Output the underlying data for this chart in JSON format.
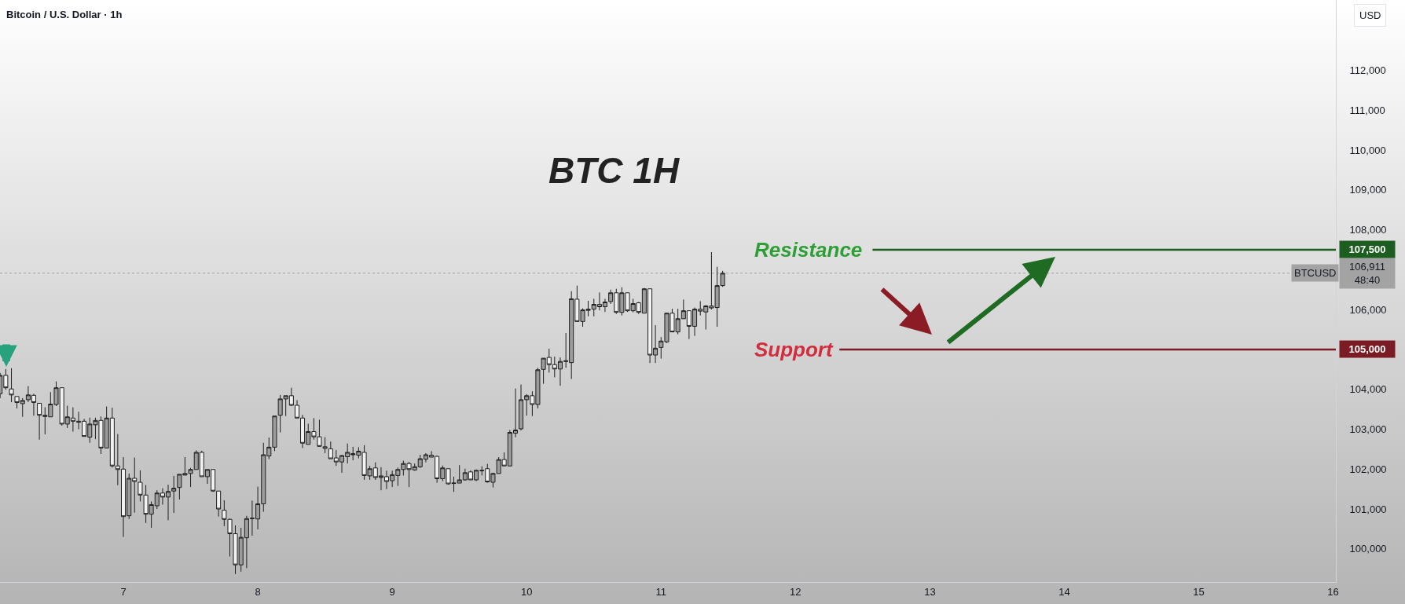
{
  "chart_data": {
    "type": "candlestick",
    "title": "Bitcoin / U.S. Dollar · 1h",
    "ylabel": "USD",
    "annotations": [
      "BTC 1H"
    ],
    "x": [
      6.083,
      6.125,
      6.167,
      6.208,
      6.25,
      6.292,
      6.333,
      6.375,
      6.417,
      6.458,
      6.5,
      6.542,
      6.583,
      6.625,
      6.667,
      6.708,
      6.75,
      6.792,
      6.833,
      6.875,
      6.917,
      6.958,
      7,
      7.042,
      7.083,
      7.125,
      7.167,
      7.208,
      7.25,
      7.292,
      7.333,
      7.375,
      7.417,
      7.458,
      7.5,
      7.542,
      7.583,
      7.625,
      7.667,
      7.708,
      7.75,
      7.792,
      7.833,
      7.875,
      7.917,
      7.958,
      8,
      8.042,
      8.083,
      8.125,
      8.167,
      8.208,
      8.25,
      8.292,
      8.333,
      8.375,
      8.417,
      8.458,
      8.5,
      8.542,
      8.583,
      8.625,
      8.667,
      8.708,
      8.75,
      8.792,
      8.833,
      8.875,
      8.917,
      8.958,
      9,
      9.042,
      9.083,
      9.125,
      9.167,
      9.208,
      9.25,
      9.292,
      9.333,
      9.375,
      9.417,
      9.458,
      9.5,
      9.542,
      9.583,
      9.625,
      9.667,
      9.708,
      9.75,
      9.792,
      9.833,
      9.875,
      9.917,
      9.958,
      10,
      10.042,
      10.083,
      10.125,
      10.167,
      10.208,
      10.25,
      10.292,
      10.333,
      10.375,
      10.417,
      10.458,
      10.5,
      10.542,
      10.583,
      10.625,
      10.667,
      10.708,
      10.75,
      10.792,
      10.833,
      10.875,
      10.917,
      10.958,
      11,
      11.042,
      11.083,
      11.125,
      11.167,
      11.208,
      11.25,
      11.292,
      11.333,
      11.375,
      11.417,
      11.458
    ],
    "ohlc": [
      [
        103890,
        104410,
        103780,
        104350
      ],
      [
        104350,
        104510,
        103990,
        104040
      ],
      [
        104010,
        104530,
        103680,
        103860
      ],
      [
        103820,
        103820,
        103520,
        103670
      ],
      [
        103640,
        103780,
        103310,
        103720
      ],
      [
        103740,
        104080,
        103680,
        103860
      ],
      [
        103850,
        103890,
        103340,
        103670
      ],
      [
        103650,
        103650,
        102740,
        103350
      ],
      [
        103350,
        103550,
        102870,
        103320
      ],
      [
        103310,
        103930,
        103310,
        103630
      ],
      [
        103620,
        104200,
        103580,
        104040
      ],
      [
        104040,
        104040,
        103090,
        103130
      ],
      [
        103130,
        103590,
        103030,
        103310
      ],
      [
        103280,
        103550,
        102940,
        103200
      ],
      [
        103200,
        103440,
        103000,
        103180
      ],
      [
        103200,
        103260,
        102820,
        102820
      ],
      [
        102800,
        103290,
        102660,
        103130
      ],
      [
        103110,
        103290,
        102750,
        103220
      ],
      [
        103220,
        103320,
        102380,
        102530
      ],
      [
        102530,
        103570,
        102530,
        103280
      ],
      [
        103280,
        103540,
        102040,
        102080
      ],
      [
        102080,
        102880,
        101600,
        101990
      ],
      [
        102000,
        102300,
        100300,
        100810
      ],
      [
        100830,
        101890,
        100750,
        101770
      ],
      [
        101770,
        102290,
        100910,
        101690
      ],
      [
        101670,
        101970,
        101190,
        101350
      ],
      [
        101350,
        101600,
        100650,
        100870
      ],
      [
        100870,
        101190,
        100530,
        101110
      ],
      [
        101080,
        101470,
        101000,
        101400
      ],
      [
        101400,
        101520,
        101110,
        101300
      ],
      [
        101300,
        101610,
        100720,
        101440
      ],
      [
        101450,
        101830,
        100900,
        101520
      ],
      [
        101540,
        101870,
        101240,
        101870
      ],
      [
        101850,
        102300,
        101850,
        101890
      ],
      [
        101890,
        102030,
        101550,
        101990
      ],
      [
        101990,
        102470,
        101990,
        102420
      ],
      [
        102420,
        102460,
        101810,
        101810
      ],
      [
        101810,
        101990,
        101630,
        101990
      ],
      [
        101990,
        102000,
        101430,
        101450
      ],
      [
        101450,
        101450,
        100810,
        101000
      ],
      [
        100970,
        101220,
        100570,
        100740
      ],
      [
        100740,
        100760,
        99810,
        100380
      ],
      [
        100380,
        100590,
        99370,
        99600
      ],
      [
        99600,
        100530,
        99430,
        100290
      ],
      [
        100280,
        100830,
        99520,
        100760
      ],
      [
        100760,
        101210,
        100330,
        100770
      ],
      [
        100750,
        101560,
        100490,
        101130
      ],
      [
        101130,
        102660,
        100930,
        102360
      ],
      [
        102330,
        102790,
        102250,
        102550
      ],
      [
        102550,
        103330,
        102450,
        103330
      ],
      [
        103350,
        103860,
        102920,
        103760
      ],
      [
        103760,
        103840,
        103330,
        103840
      ],
      [
        103840,
        104040,
        103580,
        103600
      ],
      [
        103600,
        103730,
        103280,
        103280
      ],
      [
        103280,
        103360,
        102530,
        102650
      ],
      [
        102620,
        103140,
        102620,
        102940
      ],
      [
        102940,
        103280,
        102740,
        102810
      ],
      [
        102810,
        103240,
        102570,
        102570
      ],
      [
        102560,
        102800,
        102400,
        102520
      ],
      [
        102510,
        102690,
        102260,
        102260
      ],
      [
        102280,
        102480,
        102080,
        102180
      ],
      [
        102180,
        102360,
        101910,
        102340
      ],
      [
        102310,
        102640,
        102140,
        102420
      ],
      [
        102390,
        102560,
        102220,
        102360
      ],
      [
        102350,
        102550,
        102270,
        102450
      ],
      [
        102420,
        102600,
        101730,
        101840
      ],
      [
        101830,
        102080,
        101730,
        102010
      ],
      [
        102030,
        102170,
        101730,
        101790
      ],
      [
        101790,
        102050,
        101470,
        101830
      ],
      [
        101810,
        101960,
        101500,
        101690
      ],
      [
        101710,
        101960,
        101550,
        101860
      ],
      [
        101840,
        102040,
        101580,
        101990
      ],
      [
        101990,
        102210,
        101840,
        102140
      ],
      [
        102140,
        102180,
        101550,
        101990
      ],
      [
        101980,
        102140,
        101960,
        102060
      ],
      [
        102060,
        102360,
        102030,
        102260
      ],
      [
        102250,
        102400,
        102170,
        102360
      ],
      [
        102350,
        102450,
        102300,
        102300
      ],
      [
        102320,
        102340,
        101660,
        101760
      ],
      [
        101760,
        102090,
        101700,
        102030
      ],
      [
        102010,
        102010,
        101610,
        101630
      ],
      [
        101640,
        101810,
        101430,
        101650
      ],
      [
        101650,
        102100,
        101650,
        101730
      ],
      [
        101730,
        102010,
        101710,
        101910
      ],
      [
        101930,
        101970,
        101730,
        101730
      ],
      [
        101730,
        101990,
        101700,
        101970
      ],
      [
        101970,
        102070,
        101840,
        101960
      ],
      [
        102010,
        102130,
        101660,
        101680
      ],
      [
        101670,
        101910,
        101540,
        101890
      ],
      [
        101890,
        102300,
        101890,
        102240
      ],
      [
        102240,
        102420,
        102080,
        102080
      ],
      [
        102080,
        102980,
        102080,
        102920
      ],
      [
        102900,
        104020,
        102800,
        102980
      ],
      [
        103010,
        104120,
        102970,
        103740
      ],
      [
        103740,
        103880,
        103340,
        103840
      ],
      [
        103840,
        103950,
        103330,
        103620
      ],
      [
        103620,
        104540,
        103520,
        104490
      ],
      [
        104500,
        104780,
        104140,
        104780
      ],
      [
        104800,
        105020,
        104420,
        104620
      ],
      [
        104620,
        104820,
        104300,
        104510
      ],
      [
        104510,
        104800,
        104090,
        104700
      ],
      [
        104720,
        105410,
        104540,
        104700
      ],
      [
        104670,
        106460,
        104260,
        106270
      ],
      [
        106260,
        106600,
        105700,
        105700
      ],
      [
        105700,
        106030,
        105570,
        105990
      ],
      [
        105980,
        106220,
        105830,
        106010
      ],
      [
        106010,
        106270,
        105830,
        106130
      ],
      [
        106130,
        106430,
        105980,
        106070
      ],
      [
        106070,
        106270,
        105940,
        106190
      ],
      [
        106200,
        106500,
        106140,
        106420
      ],
      [
        106420,
        106520,
        105890,
        105930
      ],
      [
        105930,
        106560,
        105850,
        106420
      ],
      [
        106420,
        106420,
        105940,
        105970
      ],
      [
        105970,
        106270,
        105930,
        106150
      ],
      [
        106170,
        106190,
        105890,
        105930
      ],
      [
        105910,
        106540,
        105910,
        106520
      ],
      [
        106520,
        106520,
        104660,
        104860
      ],
      [
        104860,
        105610,
        104660,
        105030
      ],
      [
        105050,
        105310,
        104770,
        105210
      ],
      [
        105190,
        105910,
        105160,
        105910
      ],
      [
        105910,
        106020,
        105440,
        105440
      ],
      [
        105440,
        106020,
        105380,
        105770
      ],
      [
        105770,
        106250,
        105770,
        105970
      ],
      [
        105970,
        105970,
        105260,
        105580
      ],
      [
        105580,
        106050,
        105340,
        106010
      ],
      [
        106010,
        106210,
        105850,
        105960
      ],
      [
        105940,
        106110,
        105500,
        106090
      ],
      [
        106090,
        107440,
        106000,
        106040
      ],
      [
        106050,
        107070,
        105570,
        106600
      ],
      [
        106600,
        106970,
        106570,
        106911
      ]
    ],
    "xlim": [
      6.082,
      16.02
    ],
    "xticks": [
      7,
      8,
      9,
      10,
      11,
      12,
      13,
      14,
      15,
      16
    ],
    "ylim": [
      99170,
      113760
    ],
    "yticks": [
      {
        "value": 100000,
        "label": "100,000"
      },
      {
        "value": 101000,
        "label": "101,000"
      },
      {
        "value": 102000,
        "label": "102,000"
      },
      {
        "value": 103000,
        "label": "103,000"
      },
      {
        "value": 104000,
        "label": "104,000"
      },
      {
        "value": 105000,
        "label": "105,000"
      },
      {
        "value": 106000,
        "label": "106,000"
      },
      {
        "value": 106911,
        "label": "106,911\n48:40"
      },
      {
        "value": 107500,
        "label": "107,500"
      },
      {
        "value": 108000,
        "label": "108,000"
      },
      {
        "value": 109000,
        "label": "109,000"
      },
      {
        "value": 110000,
        "label": "110,000"
      },
      {
        "value": 111000,
        "label": "111,000"
      },
      {
        "value": 112000,
        "label": "112,000"
      }
    ],
    "ref_lines": [
      {
        "axis": "y",
        "value": 107500,
        "label": "Resistance",
        "color": "#1b5e20",
        "line_style": "solid"
      },
      {
        "axis": "y",
        "value": 105000,
        "label": "Support",
        "color": "#7b1b24",
        "line_style": "solid"
      },
      {
        "axis": "y",
        "value": 106911,
        "label": "BTCUSD",
        "color": "#a3a3a3",
        "line_style": "dotted"
      }
    ],
    "grid": false
  }
}
